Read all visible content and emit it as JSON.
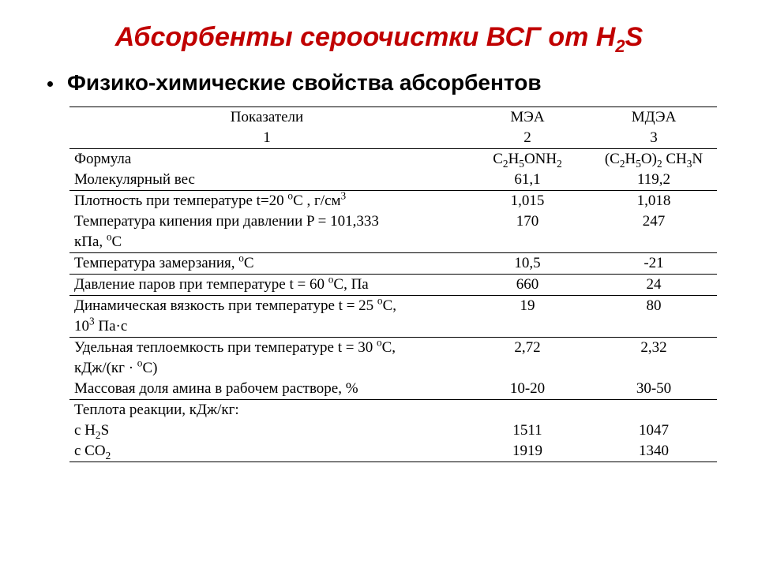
{
  "title_parts": [
    "Абсорбенты сероочистки ВСГ от H",
    "2",
    "S"
  ],
  "subtitle": "Физико-химические свойства абсорбентов",
  "columns": {
    "c1": "Показатели",
    "c2": "МЭА",
    "c3": "МДЭА",
    "n1": "1",
    "n2": "2",
    "n3": "3"
  },
  "rows": {
    "formula_label": "Формула",
    "formula_mea_parts": [
      "C",
      "2",
      "H",
      "5",
      "ONH",
      "2"
    ],
    "formula_mdea_parts": [
      "(C",
      "2",
      "H",
      "5",
      "O)",
      "2",
      " CH",
      "3",
      "N"
    ],
    "mw_label": "Молекулярный вес",
    "mw_mea": "61,1",
    "mw_mdea": "119,2",
    "dens_label_parts": [
      "Плотность при температуре t=20 ",
      "o",
      "С , г/см",
      "3"
    ],
    "dens_mea": "1,015",
    "dens_mdea": "1,018",
    "boil_label_l1": "Температура кипения при давлении P = 101,333",
    "boil_label_l2_parts": [
      "кПа, ",
      "o",
      "С"
    ],
    "boil_mea": "170",
    "boil_mdea": "247",
    "freeze_label_parts": [
      "Температура замерзания, ",
      "o",
      "С"
    ],
    "freeze_mea": "10,5",
    "freeze_mdea": "-21",
    "vap_label_parts": [
      "Давление паров при температуре t = 60 ",
      "o",
      "С, Па"
    ],
    "vap_mea": "660",
    "vap_mdea": "24",
    "visc_label_l1_parts": [
      "Динамическая вязкость при температуре t = 25 ",
      "o",
      "С,"
    ],
    "visc_label_l2_parts": [
      "10",
      "3",
      " Па·с"
    ],
    "visc_mea": "19",
    "visc_mdea": "80",
    "cp_label_l1_parts": [
      "Удельная теплоемкость при температуре t = 30 ",
      "o",
      "С,"
    ],
    "cp_label_l2_parts": [
      "кДж/(кг · ",
      "o",
      "С)"
    ],
    "cp_mea": "2,72",
    "cp_mdea": "2,32",
    "frac_label": "Массовая доля амина в рабочем растворе, %",
    "frac_mea": "10-20",
    "frac_mdea": "30-50",
    "heat_label": "Теплота реакции, кДж/кг:",
    "h2s_label_parts": [
      "с H",
      "2",
      "S"
    ],
    "h2s_mea": "1511",
    "h2s_mdea": "1047",
    "co2_label_parts": [
      "с CO",
      "2"
    ],
    "co2_mea": "1919",
    "co2_mdea": "1340"
  }
}
